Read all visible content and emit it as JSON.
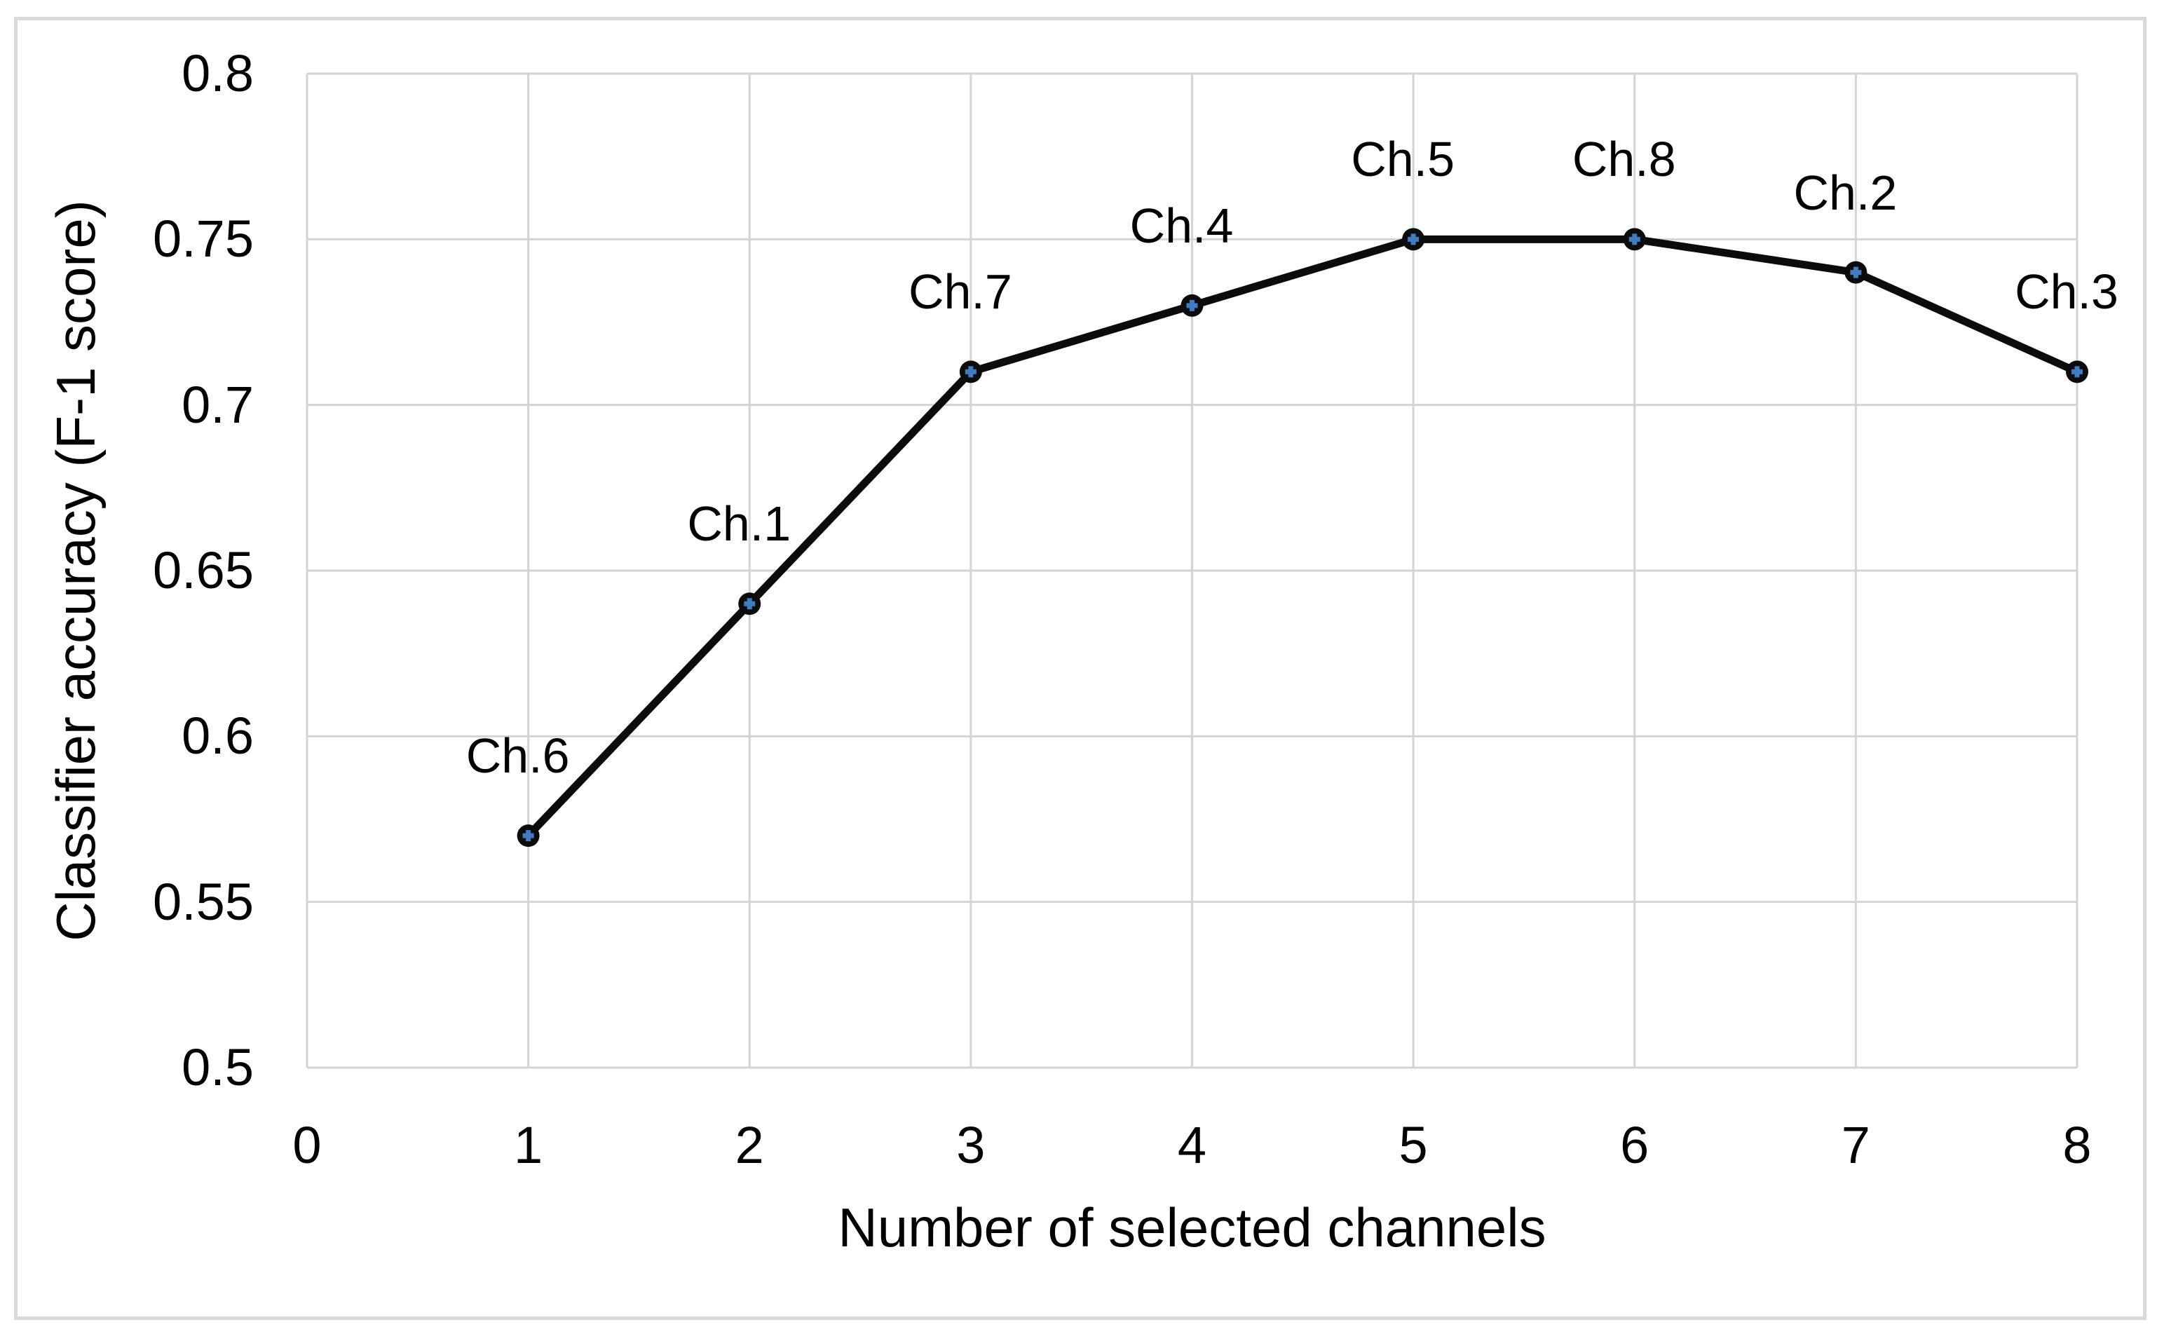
{
  "chart_data": {
    "type": "line",
    "title": "",
    "xlabel": "Number of selected channels",
    "ylabel": "Classifier accuracy (F-1 score)",
    "x": [
      1,
      2,
      3,
      4,
      5,
      6,
      7,
      8
    ],
    "values": [
      0.57,
      0.64,
      0.71,
      0.73,
      0.75,
      0.75,
      0.74,
      0.71
    ],
    "point_labels": [
      "Ch.6",
      "Ch.1",
      "Ch.7",
      "Ch.4",
      "Ch.5",
      "Ch.8",
      "Ch.2",
      "Ch.3"
    ],
    "xlim": [
      0,
      8
    ],
    "ylim": [
      0.5,
      0.8
    ],
    "xticks": [
      0,
      1,
      2,
      3,
      4,
      5,
      6,
      7,
      8
    ],
    "xtick_labels": [
      "0",
      "1",
      "2",
      "3",
      "4",
      "5",
      "6",
      "7",
      "8"
    ],
    "yticks": [
      0.5,
      0.55,
      0.6,
      0.65,
      0.7,
      0.75,
      0.8
    ],
    "ytick_labels": [
      "0.5",
      "0.55",
      "0.6",
      "0.65",
      "0.7",
      "0.75",
      "0.8"
    ],
    "grid": true,
    "legend": false,
    "marker": "circle-with-plus"
  },
  "colors": {
    "background": "#ffffff",
    "frame_border": "#d9d9d9",
    "gridline": "#d4d4d4",
    "series_line": "#0c0c0c",
    "marker_fill": "#0c0c0c",
    "marker_cross": "#3f7cc0",
    "text": "#000000"
  }
}
